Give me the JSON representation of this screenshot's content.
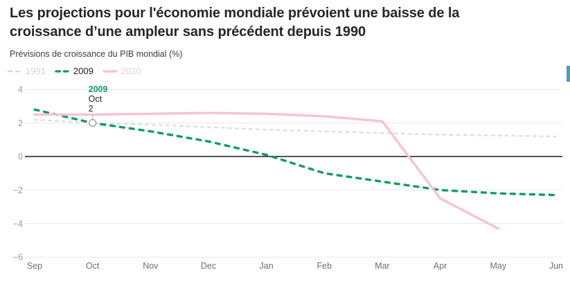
{
  "page": {
    "title": "Les projections pour l'économie mondiale prévoient une baisse de la croissance d’une ampleur sans précédent depuis 1990",
    "subtitle": "Prévisions de croissance du PIB mondial (%)"
  },
  "legend": {
    "items": [
      {
        "label": "1991",
        "color": "#d9d9d9",
        "text_color": "#d2d2d2",
        "dashed": true,
        "active": false
      },
      {
        "label": "2009",
        "color": "#0b9e5c",
        "text_color": "#1a1a1a",
        "dashed": true,
        "active": true
      },
      {
        "label": "2020",
        "color": "#f3c4cc",
        "text_color": "#e9ced4",
        "dashed": false,
        "active": false
      }
    ]
  },
  "annotation": {
    "year": "2009",
    "month": "Oct",
    "value": "2",
    "x_index": 1,
    "y_value": 2,
    "year_color": "#0b9e5c",
    "text_color": "#222222"
  },
  "chart_data": {
    "type": "line",
    "title": "Prévisions de croissance du PIB mondial (%)",
    "x": [
      "Sep",
      "Oct",
      "Nov",
      "Dec",
      "Jan",
      "Feb",
      "Mar",
      "Apr",
      "May",
      "Jun"
    ],
    "series": [
      {
        "name": "1991",
        "color": "#dcdcdc",
        "width": 2.2,
        "dash": "4 6",
        "values": [
          2.2,
          2.0,
          1.9,
          1.75,
          1.6,
          1.5,
          1.4,
          1.3,
          1.25,
          1.2
        ]
      },
      {
        "name": "2009",
        "color": "#0b9e5c",
        "width": 3.4,
        "dash": "6 8",
        "values": [
          2.8,
          2.0,
          1.5,
          0.9,
          0.1,
          -1.0,
          -1.5,
          -2.0,
          -2.2,
          -2.3
        ]
      },
      {
        "name": "2020",
        "color": "#f4c5cd",
        "width": 3.4,
        "dash": null,
        "values": [
          2.5,
          2.5,
          2.55,
          2.6,
          2.55,
          2.4,
          2.1,
          -2.5,
          -4.3,
          null
        ]
      }
    ],
    "ylim": [
      -6,
      4
    ],
    "yticks": [
      4,
      2,
      0,
      -2,
      -4,
      -6
    ],
    "grid": true,
    "legend_position": "top-left",
    "zero_line_color": "#1a1a1a",
    "grid_color": "#e9e9e9",
    "x_label_color": "#6f6f6f",
    "y_label_color": "#9a9a9a"
  }
}
